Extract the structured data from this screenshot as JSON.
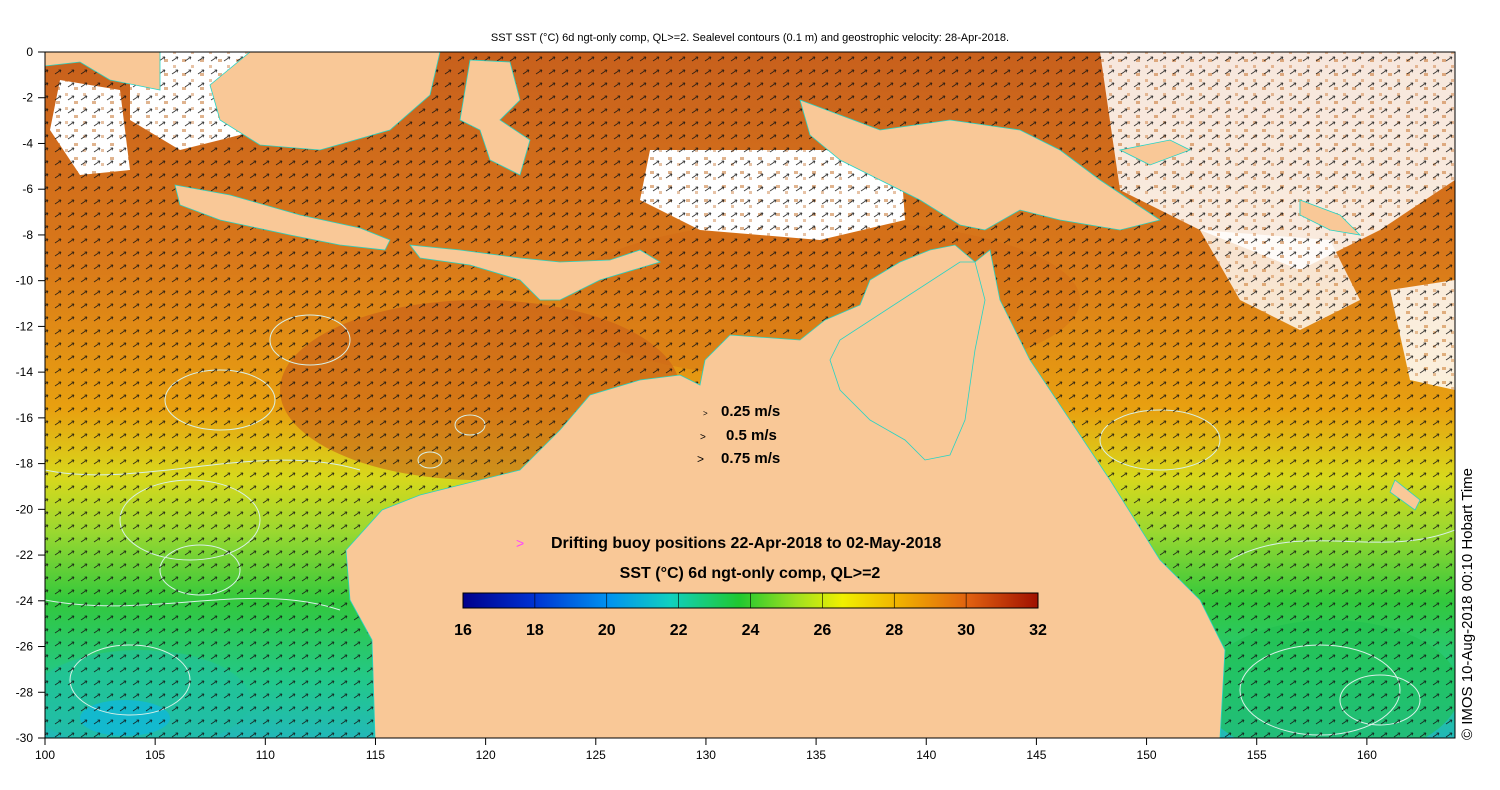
{
  "title": "SST SST (°C) 6d ngt-only comp, QL>=2. Sealevel contours (0.1 m) and geostrophic velocity: 28-Apr-2018.",
  "map": {
    "lon_range": [
      100,
      164
    ],
    "lat_range": [
      -30,
      0
    ],
    "x_ticks": [
      "100",
      "105",
      "110",
      "115",
      "120",
      "125",
      "130",
      "135",
      "140",
      "145",
      "150",
      "155",
      "160"
    ],
    "y_ticks": [
      "0",
      "-2",
      "-4",
      "-6",
      "-8",
      "-10",
      "-12",
      "-14",
      "-16",
      "-18",
      "-20",
      "-22",
      "-24",
      "-26",
      "-28",
      "-30"
    ]
  },
  "velocity_legend": {
    "items": [
      "0.25 m/s",
      "0.5 m/s",
      "0.75 m/s"
    ],
    "arrow_glyph": ">"
  },
  "buoy_legend": {
    "marker_glyph": ">",
    "label": "Drifting buoy positions 22-Apr-2018 to 02-May-2018"
  },
  "colorbar": {
    "title": "SST (°C) 6d ngt-only comp, QL>=2",
    "min": 16,
    "max": 32,
    "tick_labels": [
      "16",
      "18",
      "20",
      "22",
      "24",
      "26",
      "28",
      "30",
      "32"
    ]
  },
  "credit": "© IMOS 10-Aug-2018 00:10 Hobart Time",
  "colors": {
    "land": "#f9c897",
    "sst_warm": "#d2661a",
    "sst_mid": "#e8a010",
    "sst_cool": "#32c83c",
    "contour": "#d8f0e8",
    "coast_line": "#27d3c4",
    "buoy": "#ff44ff"
  }
}
